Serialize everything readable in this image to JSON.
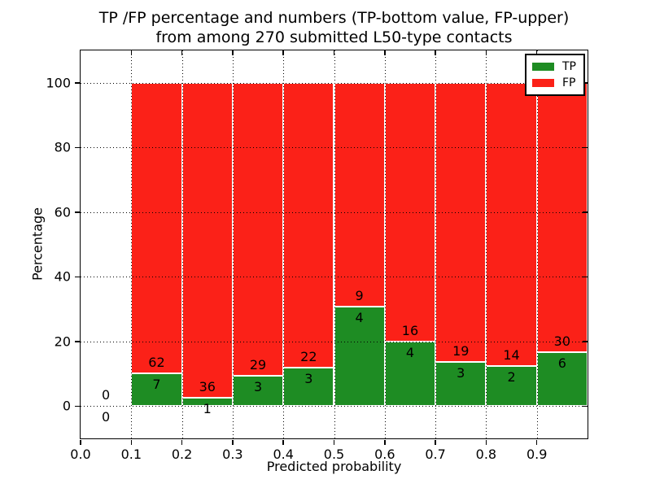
{
  "chart_data": {
    "type": "bar",
    "stacked": true,
    "normalized_to_percent": true,
    "title": "TP /FP percentage and numbers (TP-bottom value, FP-upper)\nfrom among 270 submitted L50-type contacts",
    "xlabel": "Predicted probability",
    "ylabel": "Percentage",
    "total_submitted": 270,
    "xlim": [
      0.0,
      1.0
    ],
    "ylim": [
      -10,
      110
    ],
    "xticks": [
      "0.0",
      "0.1",
      "0.2",
      "0.3",
      "0.4",
      "0.5",
      "0.6",
      "0.7",
      "0.8",
      "0.9"
    ],
    "yticks": [
      0,
      20,
      40,
      60,
      80,
      100
    ],
    "grid": "dotted, drawn over bars",
    "legend_position": "upper-right",
    "bin_edges": [
      0.0,
      0.1,
      0.2,
      0.3,
      0.4,
      0.5,
      0.6,
      0.7,
      0.8,
      0.9,
      1.0
    ],
    "series": [
      {
        "name": "TP",
        "color": "#1e8c23",
        "counts": [
          0,
          7,
          1,
          3,
          3,
          4,
          4,
          3,
          2,
          6
        ]
      },
      {
        "name": "FP",
        "color": "#fb2118",
        "counts": [
          0,
          62,
          36,
          29,
          22,
          9,
          16,
          19,
          14,
          30
        ]
      }
    ],
    "tp_percent_of_bin": [
      0,
      10.145,
      2.703,
      9.375,
      12.0,
      30.769,
      20.0,
      13.636,
      12.5,
      16.667
    ],
    "bar_edge_color": "#ffffff",
    "axis_color": "#000000"
  }
}
